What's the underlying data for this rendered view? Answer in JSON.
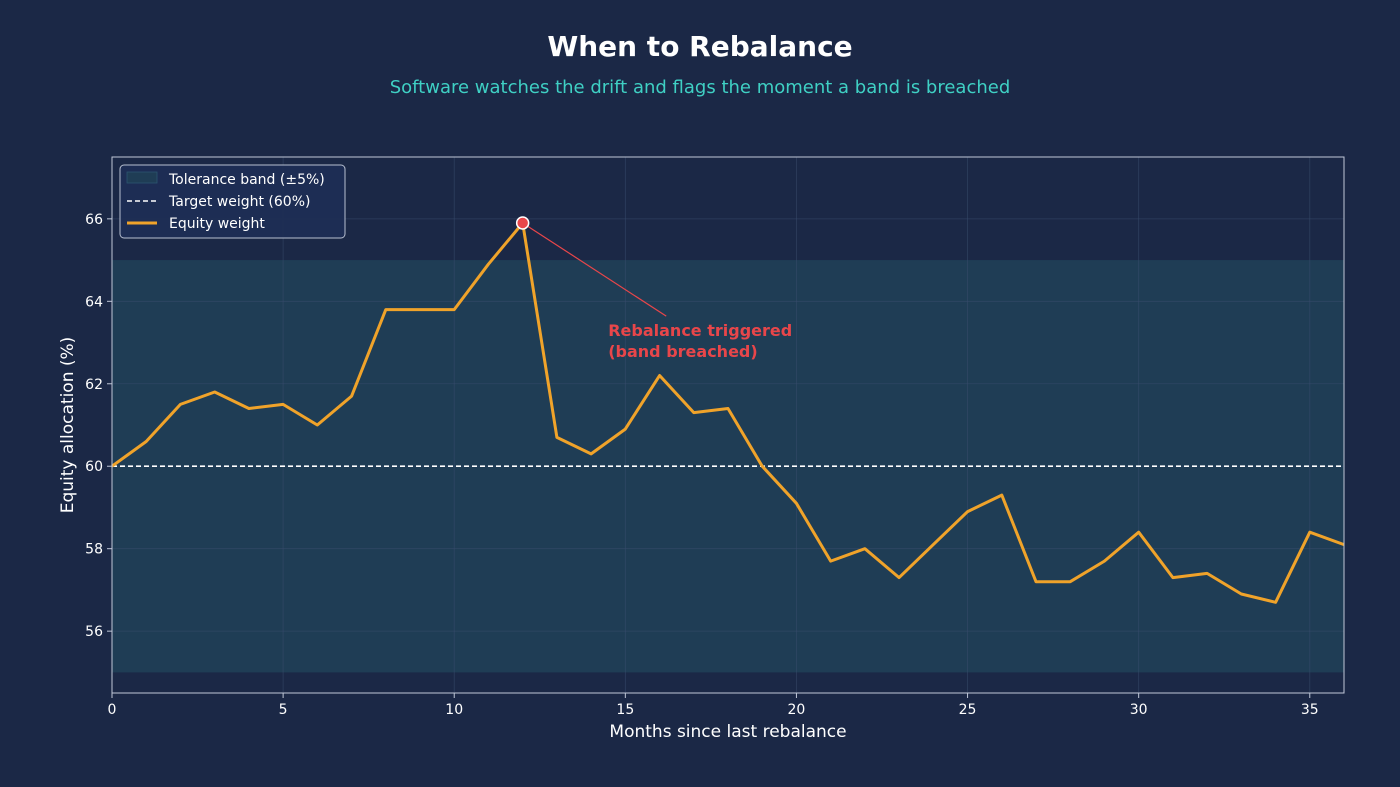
{
  "title": "When to Rebalance",
  "subtitle": "Software watches the drift and flags the moment a band is breached",
  "colors": {
    "background": "#1b2846",
    "plot_background": "#1b2846",
    "band": "#1f3d55",
    "equity_line": "#f0a32a",
    "target_line": "#ffffff",
    "annotation": "#e8464a",
    "grid": "#3a4d6e",
    "frame": "#c0c8d8"
  },
  "chart_data": {
    "type": "line",
    "xlabel": "Months since last rebalance",
    "ylabel": "Equity allocation (%)",
    "xlim": [
      0,
      36
    ],
    "ylim": [
      54.5,
      67.5
    ],
    "xticks": [
      0,
      5,
      10,
      15,
      20,
      25,
      30,
      35
    ],
    "yticks": [
      56,
      58,
      60,
      62,
      64,
      66
    ],
    "grid": true,
    "legend_position": "top-left",
    "legend": [
      {
        "label": "Tolerance band (±5%)",
        "kind": "band"
      },
      {
        "label": "Target weight (60%)",
        "kind": "target"
      },
      {
        "label": "Equity weight",
        "kind": "line"
      }
    ],
    "band": {
      "lower": 55,
      "upper": 65
    },
    "target": 60,
    "series": [
      {
        "kind": "equity",
        "x": [
          0,
          1,
          2,
          3,
          4,
          5,
          6,
          7,
          8,
          9,
          10,
          11,
          12,
          13,
          14,
          15,
          16,
          17,
          18,
          19,
          20,
          21,
          22,
          23,
          24,
          25,
          26,
          27,
          28,
          29,
          30,
          31,
          32,
          33,
          34,
          35,
          36
        ],
        "values": [
          60.0,
          60.6,
          61.5,
          61.8,
          61.4,
          61.5,
          61.0,
          61.7,
          63.8,
          63.8,
          63.8,
          64.9,
          65.9,
          60.7,
          60.3,
          60.9,
          62.2,
          61.3,
          61.4,
          60.0,
          59.1,
          57.7,
          58.0,
          57.3,
          58.1,
          58.9,
          59.3,
          57.2,
          57.2,
          57.7,
          58.4,
          57.3,
          57.4,
          56.9,
          56.7,
          58.4,
          58.1
        ]
      }
    ],
    "annotation": {
      "text_lines": [
        "Rebalance triggered",
        "(band breached)"
      ],
      "point": {
        "x": 12,
        "y": 65.9
      },
      "text_at": {
        "x": 14.5,
        "y": 63.3
      }
    }
  }
}
